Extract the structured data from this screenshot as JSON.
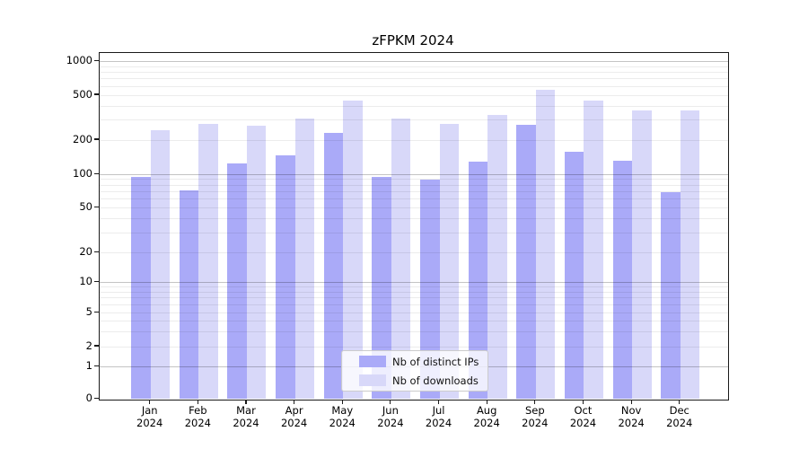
{
  "title": "zFPKM 2024",
  "colors": {
    "series_distinct_ips": "#aaaaf8",
    "series_downloads": "#d8d8f9",
    "grid_major": "#c4c4c4",
    "grid_minor": "#ececec",
    "spine": "#1a1a1a",
    "background": "#ffffff",
    "legend_border": "#cccccc"
  },
  "legend": {
    "items": [
      {
        "label": "Nb of distinct IPs"
      },
      {
        "label": "Nb of downloads"
      }
    ]
  },
  "chart_data": {
    "type": "bar",
    "title": "zFPKM 2024",
    "categories": [
      "Jan 2024",
      "Feb 2024",
      "Mar 2024",
      "Apr 2024",
      "May 2024",
      "Jun 2024",
      "Jul 2024",
      "Aug 2024",
      "Sep 2024",
      "Oct 2024",
      "Nov 2024",
      "Dec 2024"
    ],
    "x_tick_months": [
      "Jan",
      "Feb",
      "Mar",
      "Apr",
      "May",
      "Jun",
      "Jul",
      "Aug",
      "Sep",
      "Oct",
      "Nov",
      "Dec"
    ],
    "x_tick_year": "2024",
    "series": [
      {
        "name": "Nb of distinct IPs",
        "color": "#aaaaf8",
        "values": [
          95,
          72,
          126,
          146,
          232,
          96,
          90,
          130,
          272,
          159,
          133,
          70
        ]
      },
      {
        "name": "Nb of downloads",
        "color": "#d8d8f9",
        "values": [
          243,
          278,
          268,
          312,
          452,
          308,
          277,
          332,
          560,
          450,
          366,
          366
        ]
      }
    ],
    "yscale": "symlog",
    "ylim": [
      0,
      1000
    ],
    "y_ticks": [
      0,
      1,
      2,
      5,
      10,
      20,
      50,
      100,
      200,
      500,
      1000
    ],
    "grid": "major-and-minor-horizontal",
    "legend_position": "lower center"
  }
}
